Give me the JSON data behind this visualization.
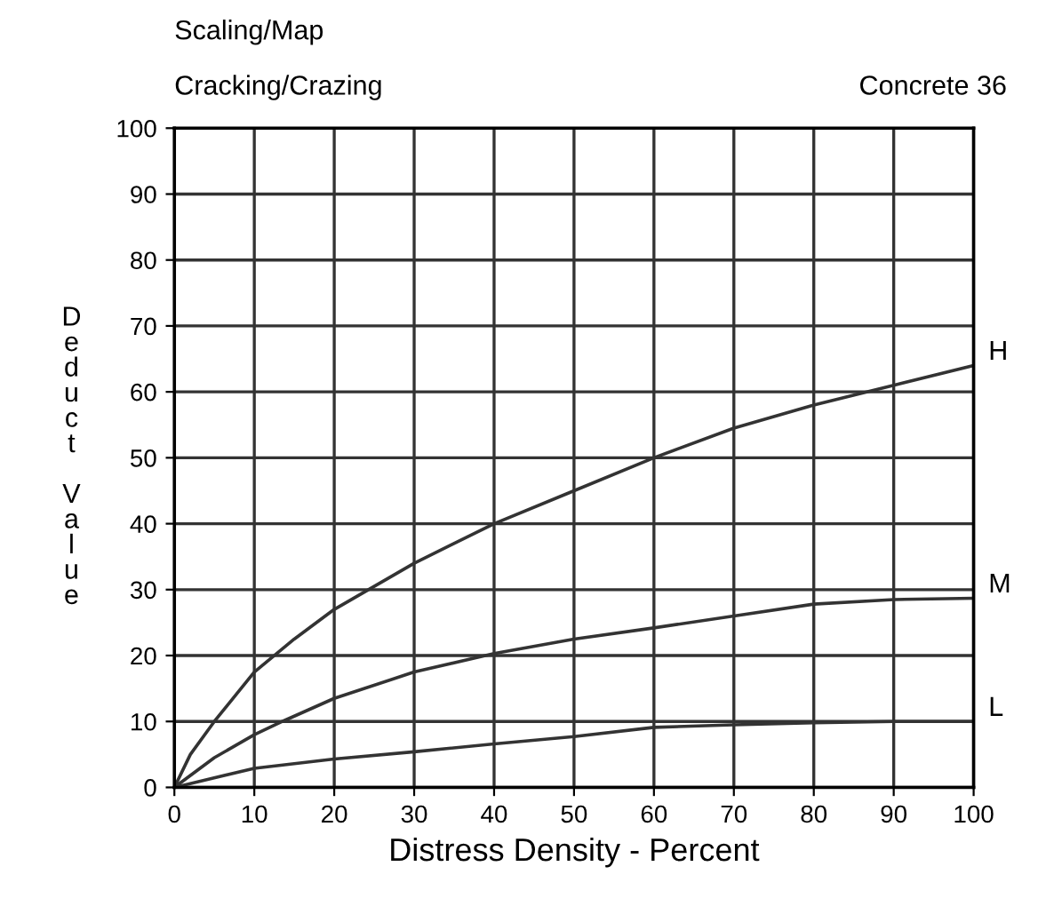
{
  "chart_data": {
    "type": "line",
    "title": "Scaling/Map",
    "subtitle": "Cracking/Crazing",
    "annotations": [
      "Concrete 36"
    ],
    "xlabel": "Distress Density - Percent",
    "ylabel": "Deduct Value",
    "xlim": [
      0,
      100
    ],
    "ylim": [
      0,
      100
    ],
    "xticks": [
      0,
      10,
      20,
      30,
      40,
      50,
      60,
      70,
      80,
      90,
      100
    ],
    "yticks": [
      0,
      10,
      20,
      30,
      40,
      50,
      60,
      70,
      80,
      90,
      100
    ],
    "grid": true,
    "legend": false,
    "marker": "none",
    "line_style": "solid",
    "series": [
      {
        "name": "H",
        "color": "#333333",
        "x": [
          0,
          2,
          5,
          10,
          15,
          20,
          30,
          40,
          50,
          60,
          70,
          80,
          90,
          100
        ],
        "values": [
          0,
          5,
          10,
          17.5,
          22.5,
          27,
          34,
          40,
          45,
          50,
          54.5,
          58,
          61,
          64
        ]
      },
      {
        "name": "M",
        "color": "#333333",
        "x": [
          0,
          5,
          10,
          13.5,
          20,
          30,
          40,
          50,
          60,
          70,
          80,
          90,
          100
        ],
        "values": [
          0,
          4.5,
          8,
          10,
          13.5,
          17.5,
          20.3,
          22.5,
          24.2,
          26,
          27.8,
          28.5,
          28.7
        ]
      },
      {
        "name": "L",
        "color": "#333333",
        "x": [
          0,
          10,
          20,
          30,
          40,
          50,
          60,
          70,
          80,
          90,
          100
        ],
        "values": [
          0,
          2.9,
          4.3,
          5.4,
          6.6,
          7.7,
          9.1,
          9.5,
          9.8,
          10,
          10
        ]
      }
    ]
  }
}
